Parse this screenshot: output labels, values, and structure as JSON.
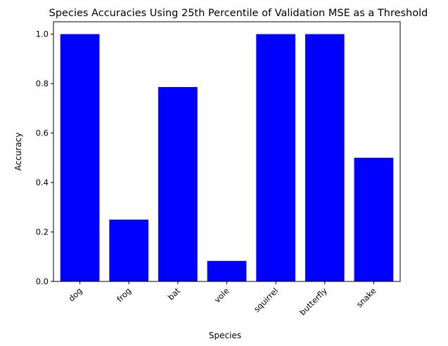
{
  "chart_data": {
    "type": "bar",
    "title": "Species Accuracies Using 25th Percentile of Validation MSE as a Threshold",
    "xlabel": "Species",
    "ylabel": "Accuracy",
    "categories": [
      "dog",
      "frog",
      "bat",
      "vole",
      "squirrel",
      "butterfly",
      "snake"
    ],
    "values": [
      1.0,
      0.25,
      0.786,
      0.083,
      1.0,
      1.0,
      0.5
    ],
    "ylim": [
      0,
      1.05
    ],
    "yticks": [
      0.0,
      0.2,
      0.4,
      0.6,
      0.8,
      1.0
    ],
    "ytick_labels": [
      "0.0",
      "0.2",
      "0.4",
      "0.6",
      "0.8",
      "1.0"
    ],
    "bar_color": "#0000ff",
    "grid": false,
    "xtick_rotation": "45deg"
  }
}
